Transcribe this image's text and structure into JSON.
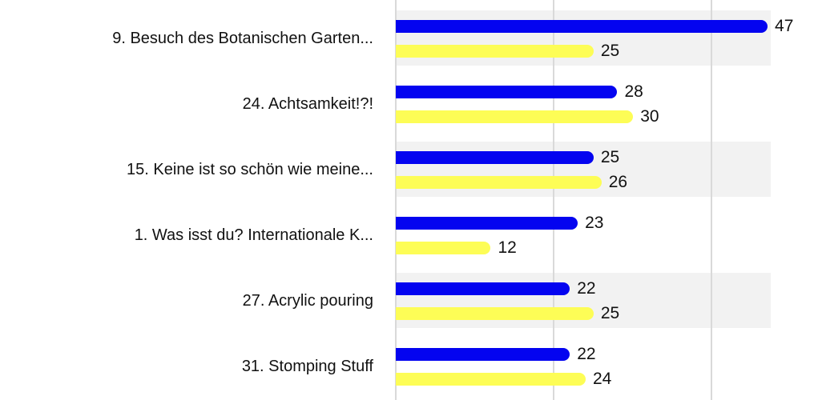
{
  "chart_data": {
    "type": "bar",
    "orientation": "horizontal",
    "title": "",
    "xlabel": "",
    "ylabel": "",
    "categories": [
      "9. Besuch des Botanischen Garten...",
      "24. Achtsamkeit!?!",
      "15. Keine ist so schön wie meine...",
      "1. Was isst du? Internationale K...",
      "27. Acrylic pouring",
      "31. Stomping Stuff"
    ],
    "series": [
      {
        "name": "blue-series",
        "color": "#0404f0",
        "values": [
          47,
          28,
          25,
          23,
          22,
          22
        ]
      },
      {
        "name": "yellow-series",
        "color": "#fdfd56",
        "values": [
          25,
          30,
          26,
          12,
          25,
          24
        ]
      }
    ],
    "axis": {
      "min": 0,
      "max": 47.4,
      "gridlines": [
        0,
        20,
        40
      ],
      "tick_labels_visible": false
    },
    "legend": {
      "visible": false
    },
    "grid": "on",
    "stripe_rows": [
      0,
      2,
      4
    ],
    "colors": {
      "stripe": "#f2f2f2",
      "gridline": "#d9d9d9",
      "background": "#ffffff",
      "label_text": "#111111"
    }
  }
}
